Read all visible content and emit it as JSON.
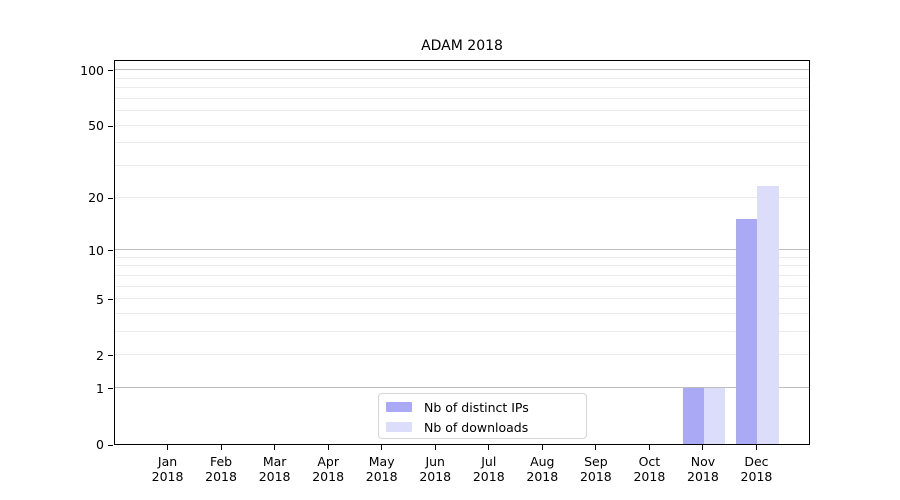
{
  "chart_data": {
    "type": "bar",
    "title": "ADAM 2018",
    "x": {
      "months": [
        "Jan",
        "Feb",
        "Mar",
        "Apr",
        "May",
        "Jun",
        "Jul",
        "Aug",
        "Sep",
        "Oct",
        "Nov",
        "Dec"
      ],
      "year": "2018"
    },
    "categories": [
      "Jan 2018",
      "Feb 2018",
      "Mar 2018",
      "Apr 2018",
      "May 2018",
      "Jun 2018",
      "Jul 2018",
      "Aug 2018",
      "Sep 2018",
      "Oct 2018",
      "Nov 2018",
      "Dec 2018"
    ],
    "series": [
      {
        "name": "Nb of distinct IPs",
        "color": "#a9a9f6",
        "values": [
          0,
          0,
          0,
          0,
          0,
          0,
          0,
          0,
          0,
          0,
          1,
          15
        ]
      },
      {
        "name": "Nb of downloads",
        "color": "#dcdcfb",
        "values": [
          0,
          0,
          0,
          0,
          0,
          0,
          0,
          0,
          0,
          0,
          1,
          23
        ]
      }
    ],
    "y_axis": {
      "scale": "symlog (log1p)",
      "tick_values": [
        0,
        1,
        2,
        5,
        10,
        20,
        50,
        100
      ],
      "tick_labels": [
        "0",
        "1",
        "2",
        "5",
        "10",
        "20",
        "50",
        "100"
      ],
      "minor_gridlines": [
        2,
        3,
        4,
        5,
        6,
        7,
        8,
        9,
        20,
        30,
        40,
        50,
        60,
        70,
        80,
        90
      ],
      "major_gridlines": [
        1,
        10,
        100
      ],
      "ylim": [
        0,
        115
      ]
    },
    "legend": {
      "position": "bottom-center",
      "entries": [
        {
          "label": "Nb of distinct IPs",
          "color": "#a9a9f6"
        },
        {
          "label": "Nb of downloads",
          "color": "#dcdcfb"
        }
      ]
    },
    "grid": true
  },
  "colors": {
    "background": "#ffffff",
    "spine": "#000000",
    "grid_minor": "#ececec",
    "grid_major": "#bdbdbd",
    "legend_border": "#d5d5d5",
    "text": "#000000"
  }
}
